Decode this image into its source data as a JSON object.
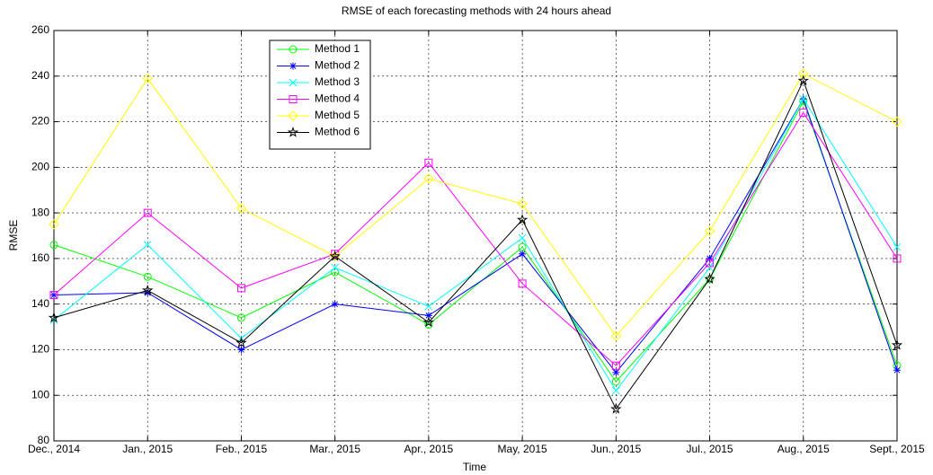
{
  "chart_data": {
    "type": "line",
    "title": "RMSE of each forecasting methods with 24 hours ahead",
    "x_label": "Time",
    "y_label": "RMSE",
    "categories": [
      "Dec., 2014",
      "Jan., 2015",
      "Feb., 2015",
      "Mar., 2015",
      "Apr., 2015",
      "May, 2015",
      "Jun., 2015",
      "Jul., 2015",
      "Aug., 2015",
      "Sept., 2015"
    ],
    "ylim": [
      80,
      260
    ],
    "yticks": [
      80,
      100,
      120,
      140,
      160,
      180,
      200,
      220,
      240,
      260
    ],
    "grid": true,
    "legend": "upper-left",
    "series": [
      {
        "name": "Method 1",
        "color": "#00ff00",
        "marker": "circle",
        "values": [
          166,
          152,
          134,
          154,
          131,
          165,
          106,
          151,
          229,
          113
        ]
      },
      {
        "name": "Method 2",
        "color": "#0000ff",
        "marker": "asterisk",
        "values": [
          144,
          145,
          120,
          140,
          135,
          162,
          110,
          160,
          230,
          111
        ]
      },
      {
        "name": "Method 3",
        "color": "#00ffff",
        "marker": "x",
        "values": [
          133,
          166,
          125,
          156,
          139,
          169,
          102,
          156,
          230,
          165
        ]
      },
      {
        "name": "Method 4",
        "color": "#ff00ff",
        "marker": "square",
        "values": [
          144,
          180,
          147,
          162,
          202,
          149,
          113,
          158,
          224,
          160
        ]
      },
      {
        "name": "Method 5",
        "color": "#ffff00",
        "marker": "diamond",
        "values": [
          175,
          239,
          182,
          161,
          195,
          184,
          126,
          172,
          241,
          220
        ]
      },
      {
        "name": "Method 6",
        "color": "#000000",
        "marker": "pentagram",
        "values": [
          134,
          146,
          123,
          161,
          132,
          177,
          94,
          151,
          238,
          122
        ]
      }
    ]
  }
}
